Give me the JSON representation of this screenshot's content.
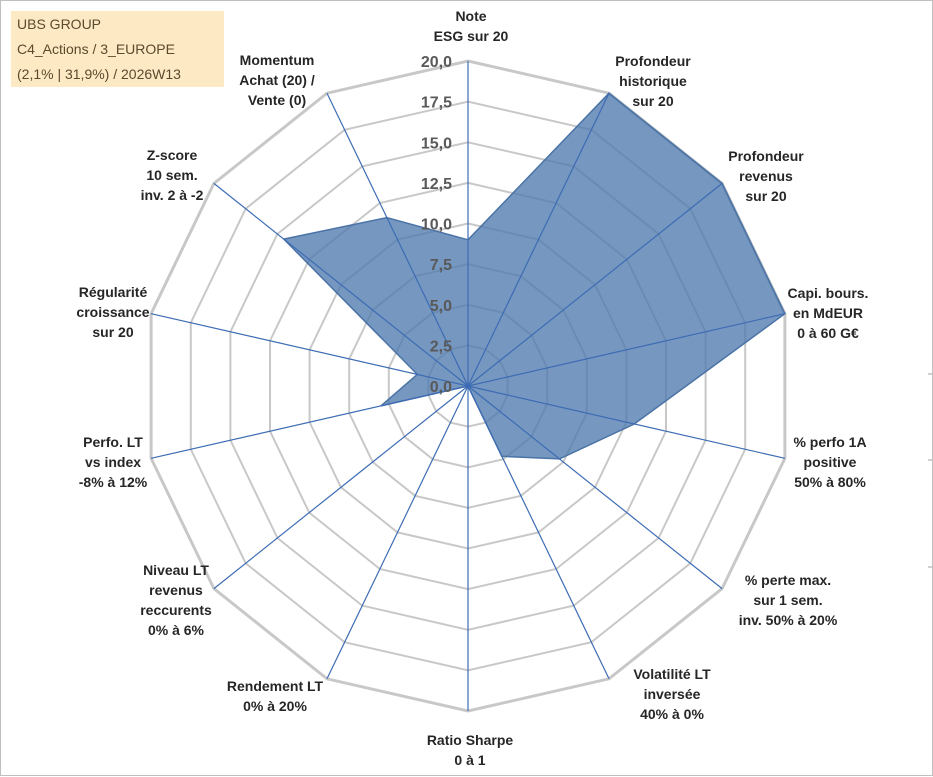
{
  "title_box": {
    "line1": "UBS GROUP",
    "line2": "C4_Actions / 3_EUROPE",
    "line3": "(2,1% | 31,9%) / 2026W13"
  },
  "chart_data": {
    "type": "radar",
    "title": "UBS GROUP",
    "rmin": 0,
    "rmax": 20,
    "tick_step": 2.5,
    "tick_labels": [
      "0,0",
      "2,5",
      "5,0",
      "7,5",
      "10,0",
      "12,5",
      "15,0",
      "17,5",
      "20,0"
    ],
    "axes": [
      [
        "Note",
        "ESG sur 20"
      ],
      [
        "Profondeur",
        "historique",
        "sur 20"
      ],
      [
        "Profondeur",
        "revenus",
        "sur 20"
      ],
      [
        "Capi. bours.",
        "en MdEUR",
        "0 à 60 G€"
      ],
      [
        "% perfo 1A",
        "positive",
        "50% à 80%"
      ],
      [
        "% perte max.",
        "sur 1 sem.",
        "inv. 50% à 20%"
      ],
      [
        "Volatilité LT",
        "inversée",
        "40% à 0%"
      ],
      [
        "Ratio Sharpe",
        "0 à 1"
      ],
      [
        "Rendement LT",
        "0% à 20%"
      ],
      [
        "Niveau LT",
        "revenus",
        "reccurents",
        "0% à 6%"
      ],
      [
        "Perfo. LT",
        "vs index",
        "-8% à 12%"
      ],
      [
        "Régularité",
        "croissance",
        "sur 20"
      ],
      [
        "Z-score",
        "10 sem.",
        "inv. 2 à -2"
      ],
      [
        "Momentum",
        "Achat (20) /",
        "Vente (0)"
      ]
    ],
    "series": [
      {
        "name": "UBS GROUP",
        "color": "#4f7aae",
        "values": [
          9,
          20,
          20,
          20,
          10.5,
          7.2,
          4.8,
          0,
          0,
          0,
          5.5,
          3.2,
          14.5,
          11.5
        ]
      }
    ],
    "grid": true,
    "grid_color": "#c8c8c8",
    "axis_color": "#3d6cb4",
    "legend": "none"
  }
}
